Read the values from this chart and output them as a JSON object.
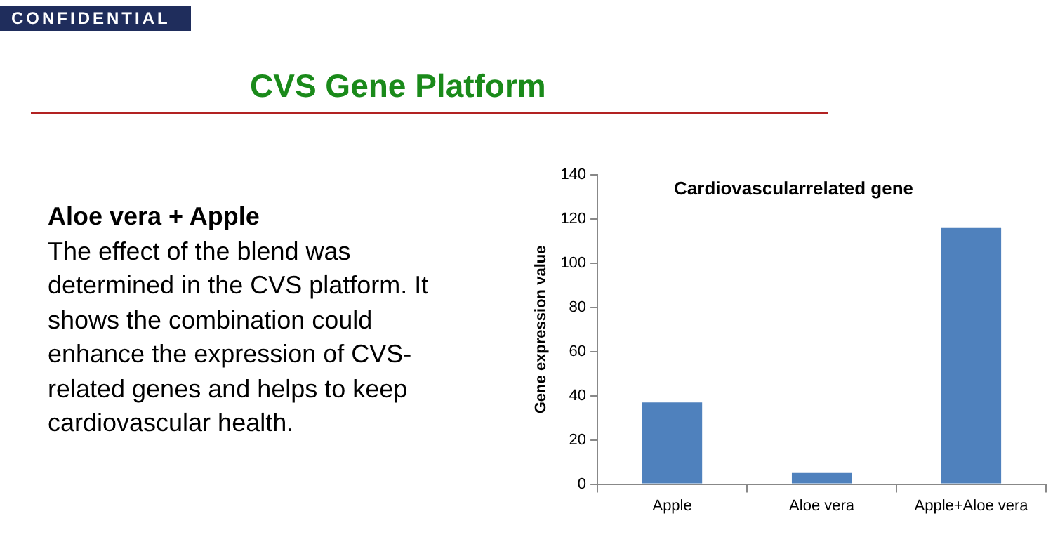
{
  "chart_data": {
    "type": "bar",
    "title": "Cardiovascularrelated gene",
    "ylabel": "Gene expression value",
    "categories": [
      "Apple",
      "Aloe vera",
      "Apple+Aloe vera"
    ],
    "values": [
      37,
      5,
      116
    ],
    "color": "#4f81bd",
    "ylim": [
      0,
      140
    ],
    "yticks": [
      0,
      20,
      40,
      60,
      80,
      100,
      120,
      140
    ],
    "grid": false,
    "legend": false,
    "annotations": [
      "CONFIDENTIAL",
      "CVS Gene Platform",
      "Aloe vera + Apple",
      "The effect of the blend was determined in the CVS platform. It shows the combination could enhance the expression of CVS-related genes and helps to keep cardiovascular health."
    ]
  }
}
